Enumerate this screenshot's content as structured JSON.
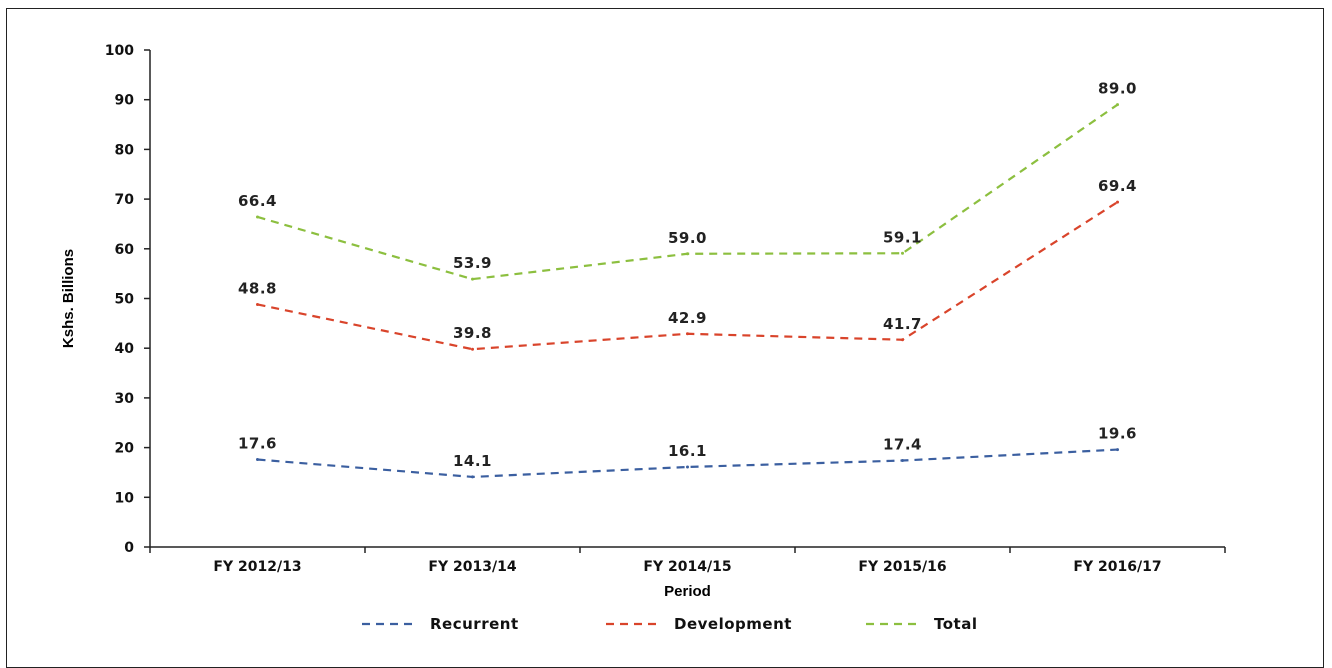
{
  "chart_data": {
    "type": "line",
    "title": "",
    "xlabel": "Period",
    "ylabel": "Kshs. Billions",
    "ylim": [
      0,
      100
    ],
    "yticks": [
      "0",
      "10",
      "20",
      "30",
      "40",
      "50",
      "60",
      "70",
      "80",
      "90",
      "100"
    ],
    "categories": [
      "FY 2012/13",
      "FY 2013/14",
      "FY 2014/15",
      "FY 2015/16",
      "FY 2016/17"
    ],
    "series": [
      {
        "name": "Recurrent",
        "color": "#3b5fa0",
        "values": [
          17.6,
          14.1,
          16.1,
          17.4,
          19.6
        ],
        "labels": [
          "17.6",
          "14.1",
          "16.1",
          "17.4",
          "19.6"
        ]
      },
      {
        "name": "Development",
        "color": "#d9442b",
        "values": [
          48.8,
          39.8,
          42.9,
          41.7,
          69.4
        ],
        "labels": [
          "48.8",
          "39.8",
          "42.9",
          "41.7",
          "69.4"
        ]
      },
      {
        "name": "Total",
        "color": "#8cbf3f",
        "values": [
          66.4,
          53.9,
          59.0,
          59.1,
          89.0
        ],
        "labels": [
          "66.4",
          "53.9",
          "59.0",
          "59.1",
          "89.0"
        ]
      }
    ],
    "line_style": "dashed",
    "grid": false,
    "legend_position": "bottom"
  }
}
